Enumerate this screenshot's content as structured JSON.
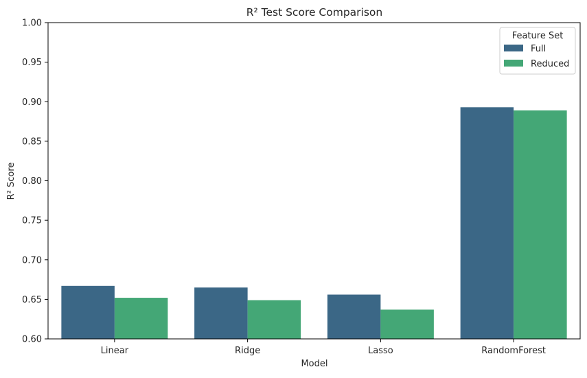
{
  "chart_data": {
    "type": "bar",
    "title": "R² Test Score Comparison",
    "xlabel": "Model",
    "ylabel": "R² Score",
    "categories": [
      "Linear",
      "Ridge",
      "Lasso",
      "RandomForest"
    ],
    "series": [
      {
        "name": "Full",
        "color": "#3b6786",
        "values": [
          0.667,
          0.665,
          0.656,
          0.893
        ]
      },
      {
        "name": "Reduced",
        "color": "#44a776",
        "values": [
          0.652,
          0.649,
          0.637,
          0.889
        ]
      }
    ],
    "ylim": [
      0.6,
      1.0
    ],
    "yticks": [
      "0.60",
      "0.65",
      "0.70",
      "0.75",
      "0.80",
      "0.85",
      "0.90",
      "0.95",
      "1.00"
    ],
    "legend": {
      "title": "Feature Set",
      "position": "top-right"
    },
    "grid": false
  }
}
